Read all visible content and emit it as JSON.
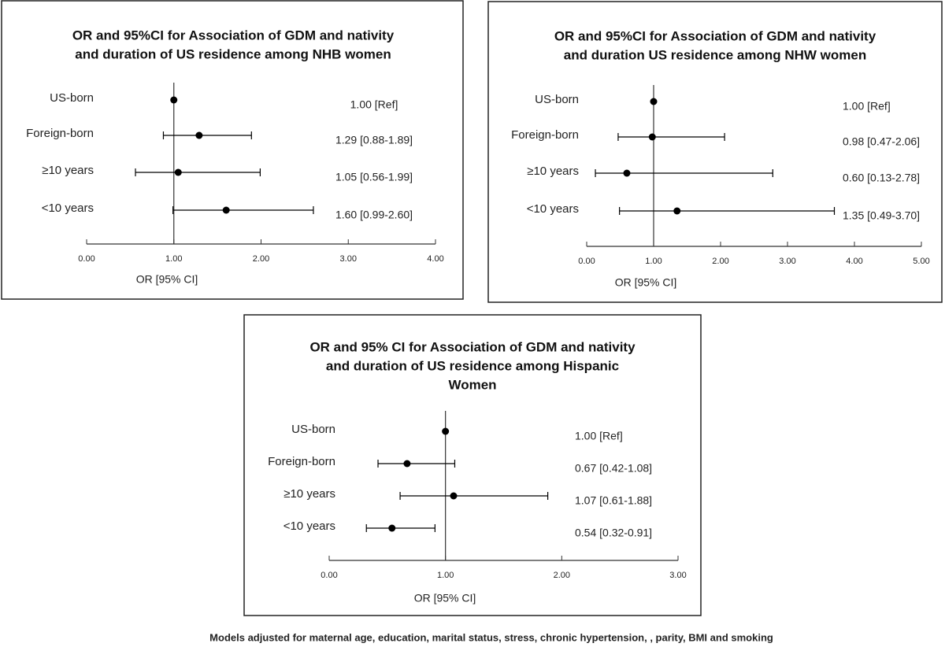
{
  "chart_data": [
    {
      "type": "forest",
      "title": [
        "OR and 95%CI for Association of GDM and nativity",
        "and duration of US residence among NHB women"
      ],
      "categories": [
        "US-born",
        "Foreign-born",
        "≥10 years",
        "<10 years"
      ],
      "values": [
        1.0,
        1.29,
        1.05,
        1.6
      ],
      "lower": [
        null,
        0.88,
        0.56,
        0.99
      ],
      "upper": [
        null,
        1.89,
        1.99,
        2.6
      ],
      "value_labels": [
        "1.00 [Ref]",
        "1.29 [0.88-1.89]",
        "1.05 [0.56-1.99]",
        "1.60 [0.99-2.60]"
      ],
      "xlim": [
        0,
        4
      ],
      "xticks": [
        {
          "value": 0,
          "label": "0.00"
        },
        {
          "value": 1,
          "label": "1.00"
        },
        {
          "value": 2,
          "label": "2.00"
        },
        {
          "value": 3,
          "label": "3.00"
        },
        {
          "value": 4,
          "label": "4.00"
        }
      ],
      "ref": 1,
      "xlabel": "OR [95% CI]",
      "color": "#000000"
    },
    {
      "type": "forest",
      "title": [
        "OR and 95%CI for Association of GDM and nativity",
        "and duration US residence among NHW women"
      ],
      "categories": [
        "US-born",
        "Foreign-born",
        "≥10 years",
        "<10 years"
      ],
      "values": [
        1.0,
        0.98,
        0.6,
        1.35
      ],
      "lower": [
        null,
        0.47,
        0.13,
        0.49
      ],
      "upper": [
        null,
        2.06,
        2.78,
        3.7
      ],
      "value_labels": [
        "1.00 [Ref]",
        "0.98 [0.47-2.06]",
        "0.60 [0.13-2.78]",
        "1.35 [0.49-3.70]"
      ],
      "xlim": [
        0,
        5
      ],
      "xticks": [
        {
          "value": 0,
          "label": "0.00"
        },
        {
          "value": 1,
          "label": "1.00"
        },
        {
          "value": 2,
          "label": "2.00"
        },
        {
          "value": 3,
          "label": "3.00"
        },
        {
          "value": 4,
          "label": "4.00"
        },
        {
          "value": 5,
          "label": "5.00"
        }
      ],
      "ref": 1,
      "xlabel": "OR [95% CI]",
      "color": "#000000"
    },
    {
      "type": "forest",
      "title": [
        "OR and 95% CI for Association of GDM and nativity",
        "and  duration of US residence among Hispanic",
        "Women"
      ],
      "categories": [
        "US-born",
        "Foreign-born",
        "≥10 years",
        "<10 years"
      ],
      "values": [
        1.0,
        0.67,
        1.07,
        0.54
      ],
      "lower": [
        null,
        0.42,
        0.61,
        0.32
      ],
      "upper": [
        null,
        1.08,
        1.88,
        0.91
      ],
      "value_labels": [
        "1.00 [Ref]",
        "0.67 [0.42-1.08]",
        "1.07 [0.61-1.88]",
        "0.54 [0.32-0.91]"
      ],
      "xlim": [
        0,
        3
      ],
      "xticks": [
        {
          "value": 0,
          "label": "0.00"
        },
        {
          "value": 1,
          "label": "1.00"
        },
        {
          "value": 2,
          "label": "2.00"
        },
        {
          "value": 3,
          "label": "3.00"
        }
      ],
      "ref": 1,
      "xlabel": "OR [95% CI]",
      "color": "#000000"
    }
  ],
  "footnote": "Models adjusted for maternal age, education, marital status, stress, chronic hypertension, , parity, BMI and smoking"
}
